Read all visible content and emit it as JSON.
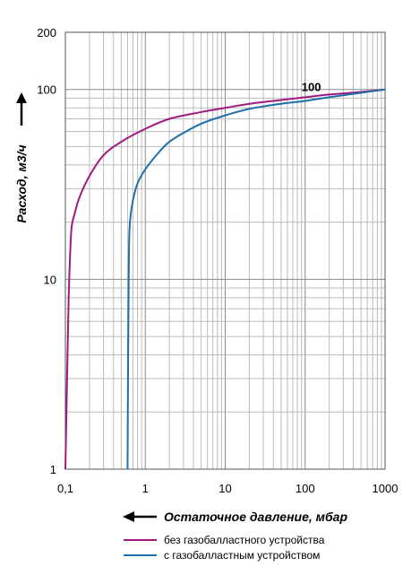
{
  "chart_data": {
    "type": "line",
    "x_scale": "log",
    "y_scale": "log",
    "xlim": [
      0.1,
      1000
    ],
    "ylim": [
      1,
      200
    ],
    "grid": true,
    "xlabel": "Остаточное давление, мбар",
    "ylabel": "Расход, м3/ч",
    "x_ticks": [
      "0,1",
      "1",
      "10",
      "100",
      "1000"
    ],
    "y_ticks": [
      "1",
      "10",
      "100",
      "200"
    ],
    "annotation": "100",
    "legend_position": "bottom",
    "series": [
      {
        "name": "без газобалластного устройства",
        "color": "#a0197f",
        "x": [
          0.1,
          0.105,
          0.11,
          0.115,
          0.12,
          0.13,
          0.15,
          0.2,
          0.3,
          0.5,
          1,
          2,
          5,
          10,
          20,
          50,
          100,
          200,
          500,
          1000
        ],
        "y": [
          1,
          3,
          8,
          14,
          19,
          22,
          27,
          35,
          45,
          53,
          62,
          70,
          76,
          80,
          84,
          88,
          91,
          94,
          97,
          100
        ]
      },
      {
        "name": "с газобалластным устройством",
        "color": "#1f6fa8",
        "x": [
          0.6,
          0.61,
          0.62,
          0.63,
          0.65,
          0.7,
          0.8,
          1,
          1.5,
          2,
          3,
          5,
          10,
          20,
          50,
          100,
          200,
          500,
          1000
        ],
        "y": [
          1,
          4,
          10,
          17,
          21,
          26,
          32,
          38,
          47,
          53,
          59,
          66,
          73,
          79,
          84,
          87,
          91,
          96,
          100
        ]
      }
    ]
  }
}
